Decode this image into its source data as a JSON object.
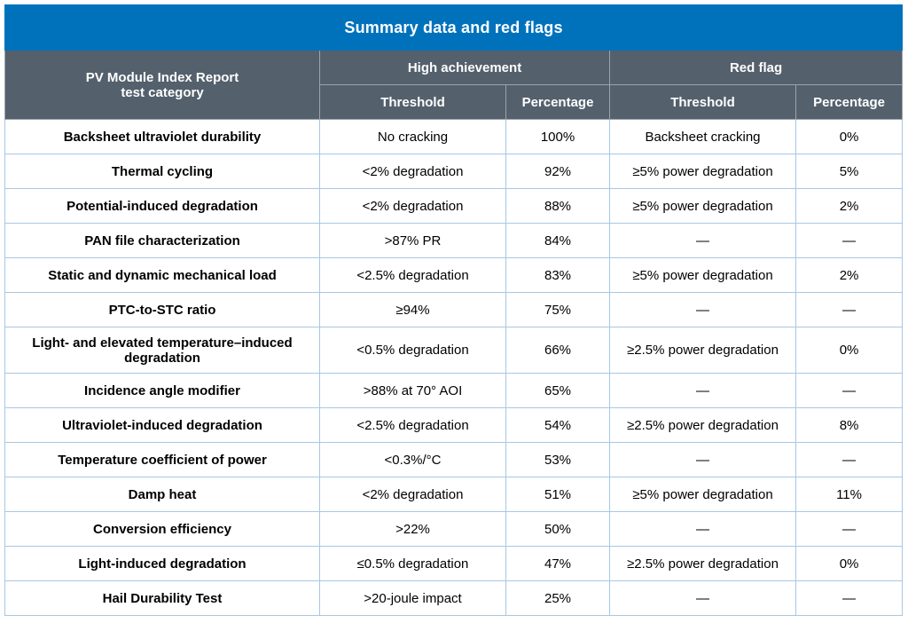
{
  "title": "Summary data and red flags",
  "headers": {
    "category": "PV Module Index Report test category",
    "high_achievement": "High achievement",
    "red_flag": "Red flag",
    "threshold": "Threshold",
    "percentage": "Percentage"
  },
  "colors": {
    "title_bg": "#0072bc",
    "header_bg": "#54606c",
    "cell_border": "#a9c7e2"
  },
  "chart_data": {
    "type": "table",
    "title": "Summary data and red flags",
    "columns": [
      "PV Module Index Report test category",
      "High achievement Threshold",
      "High achievement Percentage",
      "Red flag Threshold",
      "Red flag Percentage"
    ],
    "rows": [
      {
        "category": "Backsheet ultraviolet durability",
        "ha_threshold": "No cracking",
        "ha_pct": "100%",
        "rf_threshold": "Backsheet cracking",
        "rf_pct": "0%"
      },
      {
        "category": "Thermal cycling",
        "ha_threshold": "<2% degradation",
        "ha_pct": "92%",
        "rf_threshold": "≥5% power degradation",
        "rf_pct": "5%"
      },
      {
        "category": "Potential-induced degradation",
        "ha_threshold": "<2% degradation",
        "ha_pct": "88%",
        "rf_threshold": "≥5% power degradation",
        "rf_pct": "2%"
      },
      {
        "category": "PAN file characterization",
        "ha_threshold": ">87% PR",
        "ha_pct": "84%",
        "rf_threshold": "—",
        "rf_pct": "—"
      },
      {
        "category": "Static and dynamic mechanical load",
        "ha_threshold": "<2.5% degradation",
        "ha_pct": "83%",
        "rf_threshold": "≥5% power degradation",
        "rf_pct": "2%"
      },
      {
        "category": "PTC-to-STC ratio",
        "ha_threshold": "≥94%",
        "ha_pct": "75%",
        "rf_threshold": "—",
        "rf_pct": "—"
      },
      {
        "category": "Light- and elevated temperature–induced degradation",
        "ha_threshold": "<0.5% degradation",
        "ha_pct": "66%",
        "rf_threshold": "≥2.5% power degradation",
        "rf_pct": "0%"
      },
      {
        "category": "Incidence angle modifier",
        "ha_threshold": ">88% at 70° AOI",
        "ha_pct": "65%",
        "rf_threshold": "—",
        "rf_pct": "—"
      },
      {
        "category": "Ultraviolet-induced degradation",
        "ha_threshold": "<2.5% degradation",
        "ha_pct": "54%",
        "rf_threshold": "≥2.5% power degradation",
        "rf_pct": "8%"
      },
      {
        "category": "Temperature coefficient of power",
        "ha_threshold": "<0.3%/°C",
        "ha_pct": "53%",
        "rf_threshold": "—",
        "rf_pct": "—"
      },
      {
        "category": "Damp heat",
        "ha_threshold": "<2% degradation",
        "ha_pct": "51%",
        "rf_threshold": "≥5% power degradation",
        "rf_pct": "11%"
      },
      {
        "category": "Conversion efficiency",
        "ha_threshold": ">22%",
        "ha_pct": "50%",
        "rf_threshold": "—",
        "rf_pct": "—"
      },
      {
        "category": "Light-induced degradation",
        "ha_threshold": "≤0.5% degradation",
        "ha_pct": "47%",
        "rf_threshold": "≥2.5% power degradation",
        "rf_pct": "0%"
      },
      {
        "category": "Hail Durability Test",
        "ha_threshold": ">20-joule impact",
        "ha_pct": "25%",
        "rf_threshold": "—",
        "rf_pct": "—"
      }
    ]
  }
}
